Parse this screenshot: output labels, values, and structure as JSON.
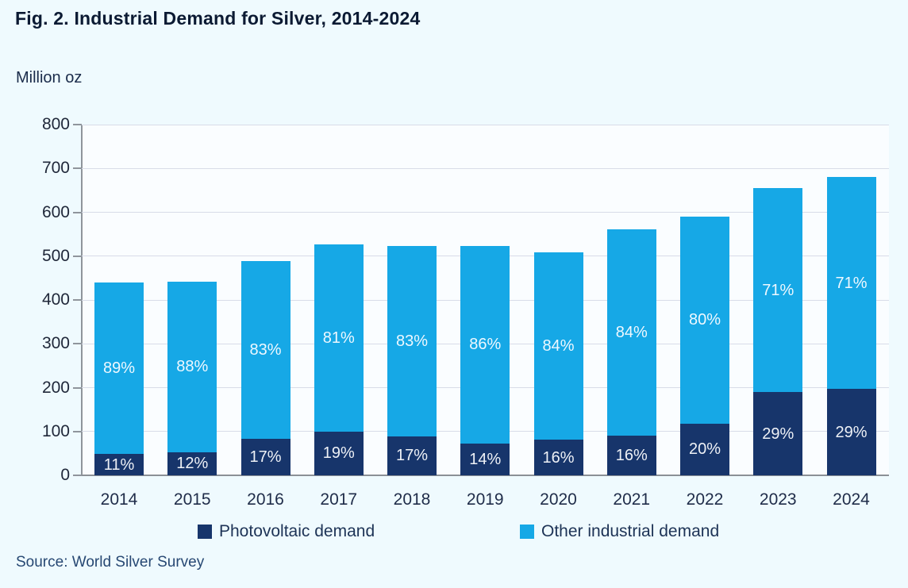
{
  "title": "Fig. 2. Industrial Demand for Silver, 2014-2024",
  "y_axis_label": "Million oz",
  "source": "Source: World Silver Survey",
  "colors": {
    "photovoltaic": "#17356b",
    "other_industrial": "#16a8e6",
    "background": "#effafe",
    "gridline": "#d8dce8",
    "axis": "#8f959c"
  },
  "legend": {
    "items": [
      {
        "label": "Photovoltaic demand",
        "color": "#17356b"
      },
      {
        "label": "Other industrial demand",
        "color": "#16a8e6"
      }
    ]
  },
  "chart_data": {
    "type": "bar",
    "stacked": true,
    "title": "Fig. 2. Industrial Demand for Silver, 2014-2024",
    "xlabel": "",
    "ylabel": "Million oz",
    "ylim": [
      0,
      800
    ],
    "ytick_step": 100,
    "y_ticks": [
      "0",
      "100",
      "200",
      "300",
      "400",
      "500",
      "600",
      "700",
      "800"
    ],
    "grid": true,
    "legend_position": "bottom",
    "categories": [
      "2014",
      "2015",
      "2016",
      "2017",
      "2018",
      "2019",
      "2020",
      "2021",
      "2022",
      "2023",
      "2024"
    ],
    "totals_moz_estimated": [
      440,
      442,
      489,
      526,
      524,
      523,
      509,
      561,
      590,
      655,
      680
    ],
    "series": [
      {
        "name": "Photovoltaic demand",
        "color": "#17356b",
        "values": [
          48,
          53,
          83,
          100,
          89,
          73,
          81,
          90,
          118,
          190,
          197
        ],
        "pct_labels": [
          "11%",
          "12%",
          "17%",
          "19%",
          "17%",
          "14%",
          "16%",
          "16%",
          "20%",
          "29%",
          "29%"
        ]
      },
      {
        "name": "Other industrial demand",
        "color": "#16a8e6",
        "values": [
          392,
          389,
          406,
          426,
          435,
          450,
          428,
          471,
          472,
          465,
          483
        ],
        "pct_labels": [
          "89%",
          "88%",
          "83%",
          "81%",
          "83%",
          "86%",
          "84%",
          "84%",
          "80%",
          "71%",
          "71%"
        ]
      }
    ]
  }
}
